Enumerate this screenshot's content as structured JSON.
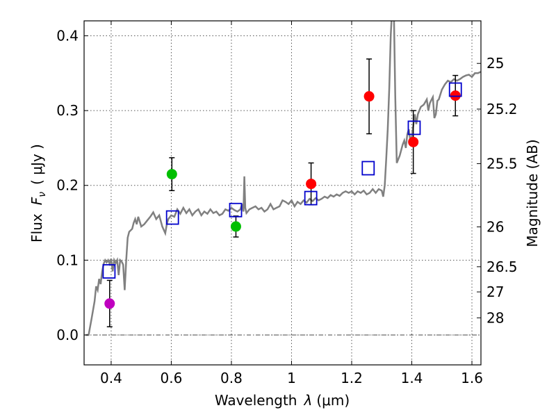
{
  "chart_data": {
    "type": "scatter",
    "xlabel_prefix": "Wavelength",
    "xlabel_symbol": "λ",
    "xlabel_unit": "(μm)",
    "ylabel_prefix": "Flux",
    "ylabel_symbol": "F",
    "ylabel_sub": "ν",
    "ylabel_unit": "( μJy )",
    "y2label": "Magnitude (AB)",
    "xlim": [
      0.31,
      1.63
    ],
    "ylim": [
      -0.04,
      0.42
    ],
    "xticks": [
      {
        "v": 0.4,
        "label": "0.4"
      },
      {
        "v": 0.6,
        "label": "0.6"
      },
      {
        "v": 0.8,
        "label": "0.8"
      },
      {
        "v": 1.0,
        "label": "1"
      },
      {
        "v": 1.2,
        "label": "1.2"
      },
      {
        "v": 1.4,
        "label": "1.4"
      },
      {
        "v": 1.6,
        "label": "1.6"
      }
    ],
    "yticks": [
      {
        "v": 0.0,
        "label": "0.0"
      },
      {
        "v": 0.1,
        "label": "0.1"
      },
      {
        "v": 0.2,
        "label": "0.2"
      },
      {
        "v": 0.3,
        "label": "0.3"
      },
      {
        "v": 0.4,
        "label": "0.4"
      }
    ],
    "mag_ticks": [
      {
        "v": 25,
        "label": "25"
      },
      {
        "v": 25.2,
        "label": "25.2"
      },
      {
        "v": 25.5,
        "label": "25.5"
      },
      {
        "v": 26,
        "label": "26"
      },
      {
        "v": 26.5,
        "label": "26.5"
      },
      {
        "v": 27,
        "label": "27"
      },
      {
        "v": 28,
        "label": "28"
      }
    ],
    "zero_line": 0.0,
    "observed": [
      {
        "x": 0.395,
        "y": 0.042,
        "err": 0.031,
        "color": "#bf00bf"
      },
      {
        "x": 0.602,
        "y": 0.215,
        "err": 0.022,
        "color": "#00bf00"
      },
      {
        "x": 0.815,
        "y": 0.145,
        "err": 0.014,
        "color": "#00bf00"
      },
      {
        "x": 1.065,
        "y": 0.202,
        "err": 0.028,
        "color": "#ff0000"
      },
      {
        "x": 1.258,
        "y": 0.319,
        "err": 0.05,
        "color": "#ff0000"
      },
      {
        "x": 1.405,
        "y": 0.258,
        "err": 0.042,
        "color": "#ff0000"
      },
      {
        "x": 1.545,
        "y": 0.32,
        "err": 0.027,
        "color": "#ff0000"
      }
    ],
    "model_points": [
      {
        "x": 0.393,
        "y": 0.085
      },
      {
        "x": 0.604,
        "y": 0.157
      },
      {
        "x": 0.814,
        "y": 0.167
      },
      {
        "x": 1.064,
        "y": 0.183
      },
      {
        "x": 1.255,
        "y": 0.223
      },
      {
        "x": 1.408,
        "y": 0.277
      },
      {
        "x": 1.545,
        "y": 0.328
      }
    ],
    "spectrum": [
      [
        0.315,
        0.0
      ],
      [
        0.325,
        0.0
      ],
      [
        0.335,
        0.022
      ],
      [
        0.345,
        0.045
      ],
      [
        0.35,
        0.065
      ],
      [
        0.355,
        0.06
      ],
      [
        0.36,
        0.075
      ],
      [
        0.365,
        0.068
      ],
      [
        0.37,
        0.085
      ],
      [
        0.375,
        0.095
      ],
      [
        0.38,
        0.1
      ],
      [
        0.385,
        0.097
      ],
      [
        0.39,
        0.1
      ],
      [
        0.395,
        0.095
      ],
      [
        0.4,
        0.102
      ],
      [
        0.405,
        0.085
      ],
      [
        0.41,
        0.1
      ],
      [
        0.415,
        0.096
      ],
      [
        0.42,
        0.1
      ],
      [
        0.425,
        0.08
      ],
      [
        0.43,
        0.1
      ],
      [
        0.435,
        0.098
      ],
      [
        0.44,
        0.094
      ],
      [
        0.445,
        0.06
      ],
      [
        0.45,
        0.1
      ],
      [
        0.455,
        0.13
      ],
      [
        0.46,
        0.138
      ],
      [
        0.47,
        0.142
      ],
      [
        0.475,
        0.15
      ],
      [
        0.48,
        0.155
      ],
      [
        0.485,
        0.148
      ],
      [
        0.49,
        0.158
      ],
      [
        0.5,
        0.145
      ],
      [
        0.51,
        0.148
      ],
      [
        0.52,
        0.153
      ],
      [
        0.53,
        0.158
      ],
      [
        0.54,
        0.164
      ],
      [
        0.55,
        0.155
      ],
      [
        0.56,
        0.16
      ],
      [
        0.57,
        0.145
      ],
      [
        0.58,
        0.136
      ],
      [
        0.585,
        0.148
      ],
      [
        0.59,
        0.155
      ],
      [
        0.6,
        0.16
      ],
      [
        0.61,
        0.158
      ],
      [
        0.62,
        0.168
      ],
      [
        0.63,
        0.162
      ],
      [
        0.64,
        0.17
      ],
      [
        0.65,
        0.163
      ],
      [
        0.66,
        0.168
      ],
      [
        0.67,
        0.16
      ],
      [
        0.68,
        0.165
      ],
      [
        0.69,
        0.168
      ],
      [
        0.7,
        0.16
      ],
      [
        0.71,
        0.165
      ],
      [
        0.72,
        0.162
      ],
      [
        0.73,
        0.168
      ],
      [
        0.74,
        0.163
      ],
      [
        0.75,
        0.165
      ],
      [
        0.76,
        0.16
      ],
      [
        0.77,
        0.162
      ],
      [
        0.78,
        0.168
      ],
      [
        0.79,
        0.166
      ],
      [
        0.8,
        0.17
      ],
      [
        0.81,
        0.167
      ],
      [
        0.82,
        0.165
      ],
      [
        0.83,
        0.168
      ],
      [
        0.835,
        0.175
      ],
      [
        0.84,
        0.165
      ],
      [
        0.843,
        0.212
      ],
      [
        0.846,
        0.17
      ],
      [
        0.85,
        0.163
      ],
      [
        0.86,
        0.168
      ],
      [
        0.87,
        0.17
      ],
      [
        0.88,
        0.172
      ],
      [
        0.89,
        0.168
      ],
      [
        0.9,
        0.17
      ],
      [
        0.91,
        0.165
      ],
      [
        0.92,
        0.168
      ],
      [
        0.93,
        0.175
      ],
      [
        0.94,
        0.168
      ],
      [
        0.95,
        0.17
      ],
      [
        0.96,
        0.172
      ],
      [
        0.97,
        0.18
      ],
      [
        0.98,
        0.178
      ],
      [
        0.99,
        0.175
      ],
      [
        1.0,
        0.18
      ],
      [
        1.01,
        0.172
      ],
      [
        1.02,
        0.178
      ],
      [
        1.03,
        0.175
      ],
      [
        1.04,
        0.18
      ],
      [
        1.05,
        0.177
      ],
      [
        1.06,
        0.182
      ],
      [
        1.07,
        0.179
      ],
      [
        1.08,
        0.183
      ],
      [
        1.09,
        0.18
      ],
      [
        1.1,
        0.182
      ],
      [
        1.11,
        0.185
      ],
      [
        1.12,
        0.183
      ],
      [
        1.13,
        0.187
      ],
      [
        1.14,
        0.185
      ],
      [
        1.15,
        0.188
      ],
      [
        1.16,
        0.186
      ],
      [
        1.17,
        0.19
      ],
      [
        1.18,
        0.192
      ],
      [
        1.19,
        0.19
      ],
      [
        1.2,
        0.192
      ],
      [
        1.21,
        0.188
      ],
      [
        1.22,
        0.192
      ],
      [
        1.23,
        0.19
      ],
      [
        1.24,
        0.193
      ],
      [
        1.25,
        0.188
      ],
      [
        1.26,
        0.19
      ],
      [
        1.27,
        0.195
      ],
      [
        1.28,
        0.19
      ],
      [
        1.29,
        0.195
      ],
      [
        1.3,
        0.193
      ],
      [
        1.305,
        0.185
      ],
      [
        1.31,
        0.2
      ],
      [
        1.315,
        0.235
      ],
      [
        1.32,
        0.275
      ],
      [
        1.325,
        0.33
      ],
      [
        1.33,
        0.4
      ],
      [
        1.335,
        0.44
      ],
      [
        1.34,
        0.44
      ],
      [
        1.345,
        0.32
      ],
      [
        1.35,
        0.23
      ],
      [
        1.36,
        0.24
      ],
      [
        1.37,
        0.255
      ],
      [
        1.375,
        0.26
      ],
      [
        1.38,
        0.25
      ],
      [
        1.385,
        0.268
      ],
      [
        1.39,
        0.275
      ],
      [
        1.395,
        0.26
      ],
      [
        1.4,
        0.265
      ],
      [
        1.405,
        0.28
      ],
      [
        1.41,
        0.295
      ],
      [
        1.415,
        0.282
      ],
      [
        1.42,
        0.295
      ],
      [
        1.425,
        0.3
      ],
      [
        1.43,
        0.305
      ],
      [
        1.44,
        0.308
      ],
      [
        1.45,
        0.315
      ],
      [
        1.455,
        0.3
      ],
      [
        1.46,
        0.31
      ],
      [
        1.465,
        0.314
      ],
      [
        1.47,
        0.318
      ],
      [
        1.475,
        0.29
      ],
      [
        1.48,
        0.295
      ],
      [
        1.485,
        0.313
      ],
      [
        1.49,
        0.315
      ],
      [
        1.5,
        0.328
      ],
      [
        1.51,
        0.335
      ],
      [
        1.52,
        0.34
      ],
      [
        1.53,
        0.338
      ],
      [
        1.54,
        0.342
      ],
      [
        1.55,
        0.34
      ],
      [
        1.56,
        0.342
      ],
      [
        1.57,
        0.345
      ],
      [
        1.58,
        0.347
      ],
      [
        1.59,
        0.348
      ],
      [
        1.6,
        0.345
      ],
      [
        1.61,
        0.35
      ],
      [
        1.62,
        0.35
      ],
      [
        1.63,
        0.352
      ]
    ]
  },
  "colors": {
    "spectrum": "#808080",
    "model_marker": "#0000cc",
    "errorbar": "#000000",
    "grid": "#555555"
  }
}
